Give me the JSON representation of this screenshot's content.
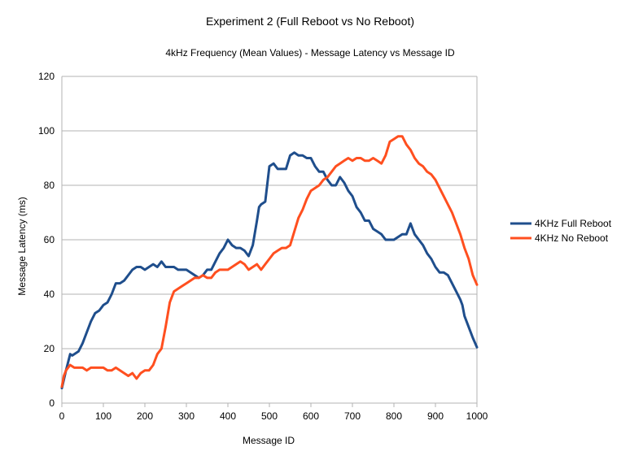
{
  "chart_data": {
    "type": "line",
    "title": "Experiment 2 (Full Reboot vs No Reboot)",
    "subtitle": "4kHz Frequency (Mean Values) - Message Latency vs Message ID",
    "xlabel": "Message ID",
    "ylabel": "Message Latency (ms)",
    "xlim": [
      0,
      1000
    ],
    "ylim": [
      0,
      120
    ],
    "xticks": [
      0,
      100,
      200,
      300,
      400,
      500,
      600,
      700,
      800,
      900,
      1000
    ],
    "yticks": [
      0,
      20,
      40,
      60,
      80,
      100,
      120
    ],
    "grid": "horizontal",
    "legend_position": "right",
    "series": [
      {
        "name": "4KHz Full Reboot",
        "color": "#1f4e8c",
        "x": [
          0,
          10,
          20,
          25,
          30,
          40,
          50,
          60,
          70,
          80,
          90,
          100,
          110,
          120,
          130,
          140,
          150,
          160,
          170,
          180,
          190,
          200,
          210,
          220,
          230,
          240,
          250,
          260,
          270,
          280,
          290,
          300,
          310,
          320,
          330,
          340,
          350,
          360,
          370,
          380,
          390,
          400,
          410,
          420,
          430,
          440,
          450,
          460,
          470,
          475,
          480,
          490,
          500,
          510,
          520,
          530,
          540,
          550,
          560,
          570,
          580,
          590,
          600,
          610,
          620,
          630,
          640,
          650,
          660,
          670,
          680,
          690,
          700,
          710,
          720,
          730,
          740,
          750,
          760,
          770,
          780,
          790,
          800,
          810,
          820,
          830,
          840,
          845,
          850,
          860,
          870,
          880,
          890,
          900,
          910,
          920,
          930,
          940,
          950,
          960,
          965,
          970,
          980,
          990,
          1000
        ],
        "y": [
          5.5,
          12,
          18,
          17.5,
          18,
          19,
          22,
          26,
          30,
          33,
          34,
          36,
          37,
          40,
          44,
          44,
          45,
          47,
          49,
          50,
          50,
          49,
          50,
          51,
          50,
          52,
          50,
          50,
          50,
          49,
          49,
          49,
          48,
          47,
          46,
          47,
          49,
          49,
          52,
          55,
          57,
          60,
          58,
          57,
          57,
          56,
          54,
          58,
          67,
          72,
          73,
          74,
          87,
          88,
          86,
          86,
          86,
          91,
          92,
          91,
          91,
          90,
          90,
          87,
          85,
          85,
          82,
          80,
          80,
          83,
          81,
          78,
          76,
          72,
          70,
          67,
          67,
          64,
          63,
          62,
          60,
          60,
          60,
          61,
          62,
          62,
          66,
          64,
          62,
          60,
          58,
          55,
          53,
          50,
          48,
          48,
          47,
          44,
          41,
          38,
          36,
          32,
          28,
          24,
          20.5
        ]
      },
      {
        "name": "4KHz No Reboot",
        "color": "#ff4f1f",
        "x": [
          0,
          5,
          10,
          15,
          20,
          30,
          40,
          50,
          60,
          70,
          80,
          90,
          100,
          110,
          120,
          130,
          140,
          150,
          160,
          170,
          180,
          190,
          200,
          210,
          220,
          230,
          240,
          250,
          260,
          270,
          280,
          290,
          300,
          310,
          320,
          330,
          340,
          350,
          360,
          370,
          380,
          390,
          400,
          410,
          420,
          430,
          440,
          450,
          460,
          470,
          480,
          490,
          500,
          510,
          520,
          530,
          540,
          550,
          560,
          570,
          580,
          590,
          600,
          610,
          620,
          630,
          640,
          650,
          660,
          670,
          680,
          690,
          700,
          710,
          720,
          730,
          740,
          750,
          760,
          770,
          780,
          790,
          800,
          810,
          820,
          830,
          840,
          850,
          860,
          870,
          880,
          890,
          900,
          910,
          920,
          930,
          940,
          950,
          960,
          970,
          980,
          990,
          1000
        ],
        "y": [
          6,
          10,
          12,
          13,
          14,
          13,
          13,
          13,
          12,
          13,
          13,
          13,
          13,
          12,
          12,
          13,
          12,
          11,
          10,
          11,
          9,
          11,
          12,
          12,
          14,
          18,
          20,
          28,
          37,
          41,
          42,
          43,
          44,
          45,
          46,
          46,
          47,
          46,
          46,
          48,
          49,
          49,
          49,
          50,
          51,
          52,
          51,
          49,
          50,
          51,
          49,
          51,
          53,
          55,
          56,
          57,
          57,
          58,
          63,
          68,
          71,
          75,
          78,
          79,
          80,
          82,
          83,
          85,
          87,
          88,
          89,
          90,
          89,
          90,
          90,
          89,
          89,
          90,
          89,
          88,
          91,
          96,
          97,
          98,
          98,
          95,
          93,
          90,
          88,
          87,
          85,
          84,
          82,
          79,
          76,
          73,
          70,
          66,
          62,
          57,
          53,
          47,
          43.5
        ]
      }
    ]
  }
}
